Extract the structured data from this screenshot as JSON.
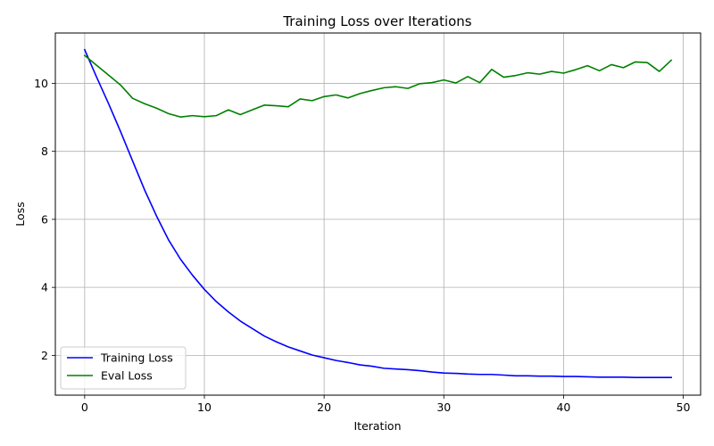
{
  "chart_data": {
    "type": "line",
    "title": "Training Loss over Iterations",
    "xlabel": "Iteration",
    "ylabel": "Loss",
    "xlim": [
      -2.45,
      51.45
    ],
    "ylim": [
      0.83,
      11.48
    ],
    "xticks": [
      0,
      10,
      20,
      30,
      40,
      50
    ],
    "yticks": [
      2,
      4,
      6,
      8,
      10
    ],
    "grid": true,
    "legend_position": "lower-left",
    "x": [
      0,
      1,
      2,
      3,
      4,
      5,
      6,
      7,
      8,
      9,
      10,
      11,
      12,
      13,
      14,
      15,
      16,
      17,
      18,
      19,
      20,
      21,
      22,
      23,
      24,
      25,
      26,
      27,
      28,
      29,
      30,
      31,
      32,
      33,
      34,
      35,
      36,
      37,
      38,
      39,
      40,
      41,
      42,
      43,
      44,
      45,
      46,
      47,
      48,
      49
    ],
    "series": [
      {
        "name": "Training Loss",
        "color": "#0000ff",
        "values": [
          10.99,
          10.18,
          9.4,
          8.58,
          7.72,
          6.87,
          6.1,
          5.4,
          4.83,
          4.36,
          3.94,
          3.58,
          3.28,
          3.01,
          2.79,
          2.57,
          2.4,
          2.25,
          2.13,
          2.01,
          1.93,
          1.85,
          1.79,
          1.72,
          1.68,
          1.62,
          1.6,
          1.58,
          1.55,
          1.51,
          1.48,
          1.47,
          1.45,
          1.44,
          1.44,
          1.42,
          1.4,
          1.4,
          1.39,
          1.39,
          1.38,
          1.38,
          1.37,
          1.36,
          1.36,
          1.36,
          1.35,
          1.35,
          1.35,
          1.35
        ]
      },
      {
        "name": "Eval Loss",
        "color": "#008000",
        "values": [
          10.82,
          10.53,
          10.24,
          9.95,
          9.56,
          9.4,
          9.27,
          9.11,
          9.01,
          9.05,
          9.02,
          9.05,
          9.22,
          9.08,
          9.22,
          9.36,
          9.34,
          9.31,
          9.54,
          9.49,
          9.61,
          9.66,
          9.57,
          9.7,
          9.79,
          9.87,
          9.9,
          9.85,
          9.99,
          10.02,
          10.1,
          10.01,
          10.2,
          10.02,
          10.41,
          10.18,
          10.23,
          10.31,
          10.27,
          10.35,
          10.3,
          10.4,
          10.52,
          10.37,
          10.55,
          10.46,
          10.63,
          10.61,
          10.35,
          10.68
        ]
      }
    ]
  },
  "legend": {
    "items": [
      {
        "label": "Training Loss",
        "color": "#0000ff"
      },
      {
        "label": "Eval Loss",
        "color": "#008000"
      }
    ]
  }
}
